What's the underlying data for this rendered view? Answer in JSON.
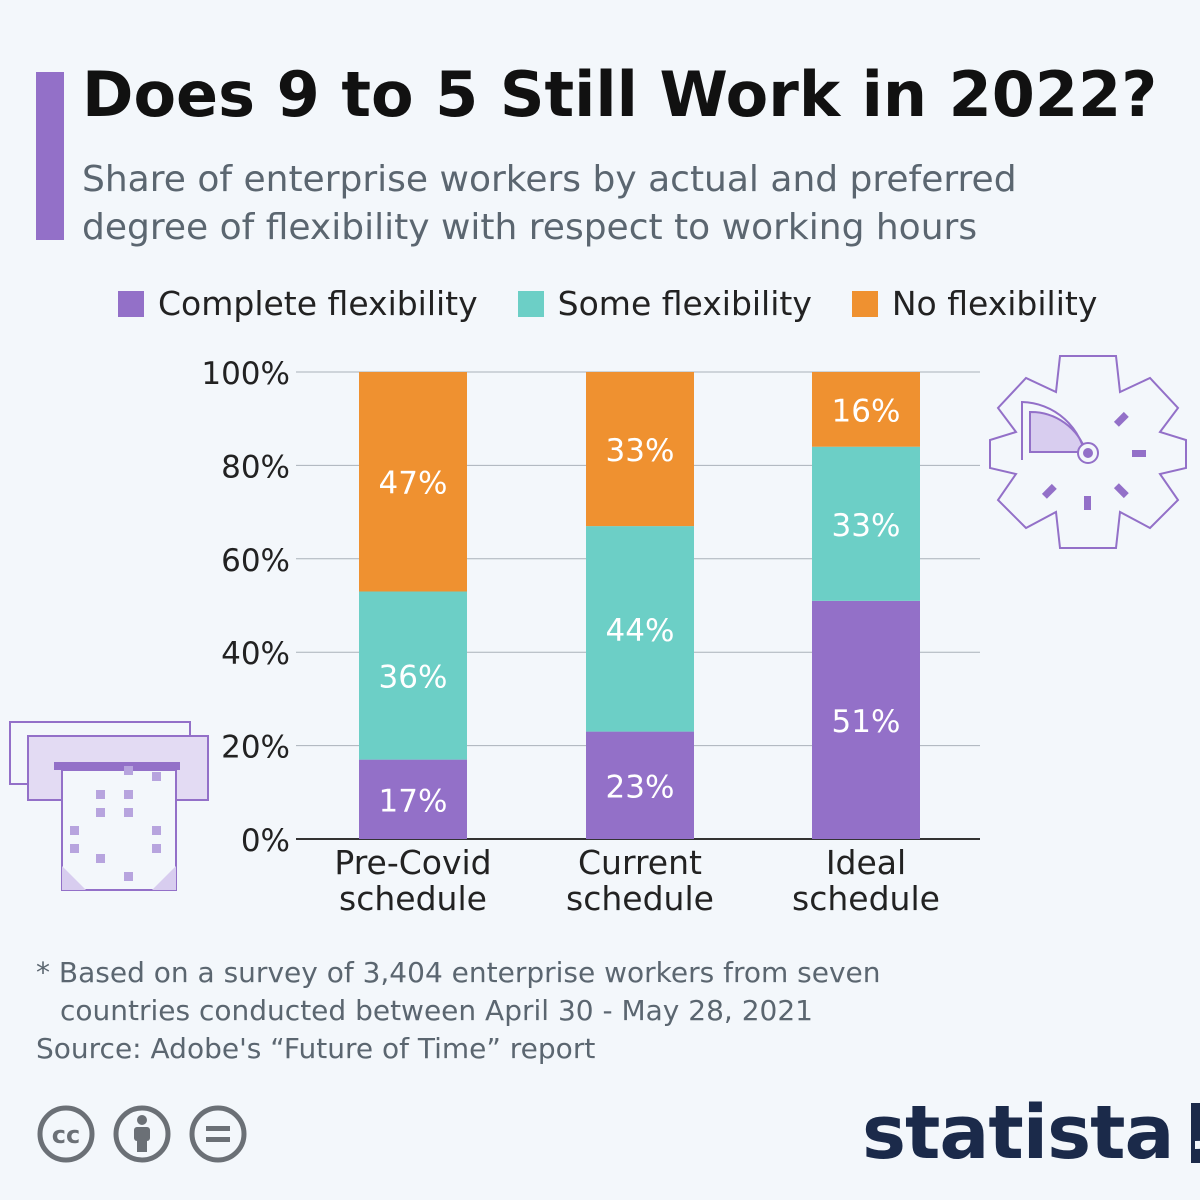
{
  "header": {
    "title": "Does 9 to 5 Still Work in 2022?",
    "subtitle": "Share of enterprise workers by actual and preferred degree of flexibility with respect to working hours"
  },
  "colors": {
    "accent": "#9370c8",
    "complete": "#9370c8",
    "some": "#6ccfc6",
    "none": "#ef9130",
    "grid": "#aab2ba",
    "axis_text": "#222222",
    "label_text": "#ffffff"
  },
  "chart_data": {
    "type": "bar",
    "stacked": true,
    "categories": [
      "Pre-Covid schedule",
      "Current schedule",
      "Ideal schedule"
    ],
    "category_lines": [
      [
        "Pre-Covid",
        "schedule"
      ],
      [
        "Current",
        "schedule"
      ],
      [
        "Ideal",
        "schedule"
      ]
    ],
    "series": [
      {
        "name": "Complete flexibility",
        "color": "#9370c8",
        "values": [
          17,
          23,
          51
        ],
        "labels": [
          "17%",
          "23%",
          "51%"
        ]
      },
      {
        "name": "Some flexibility",
        "color": "#6ccfc6",
        "values": [
          36,
          44,
          33
        ],
        "labels": [
          "36%",
          "44%",
          "33%"
        ]
      },
      {
        "name": "No flexibility",
        "color": "#ef9130",
        "values": [
          47,
          33,
          16
        ],
        "labels": [
          "47%",
          "33%",
          "16%"
        ]
      }
    ],
    "ylim": [
      0,
      100
    ],
    "yticks": [
      0,
      20,
      40,
      60,
      80,
      100
    ],
    "ytick_labels": [
      "0%",
      "20%",
      "40%",
      "60%",
      "80%",
      "100%"
    ],
    "grid": true,
    "legend_position": "top"
  },
  "footnote": {
    "line1": "* Based on a survey of 3,404 enterprise workers from seven",
    "line2": "countries conducted between April 30 - May 28, 2021"
  },
  "source": "Source: Adobe's “Future of Time” report",
  "branding": {
    "name": "statista",
    "license_icons": [
      "cc-icon",
      "attribution-icon",
      "no-derivatives-icon"
    ]
  }
}
